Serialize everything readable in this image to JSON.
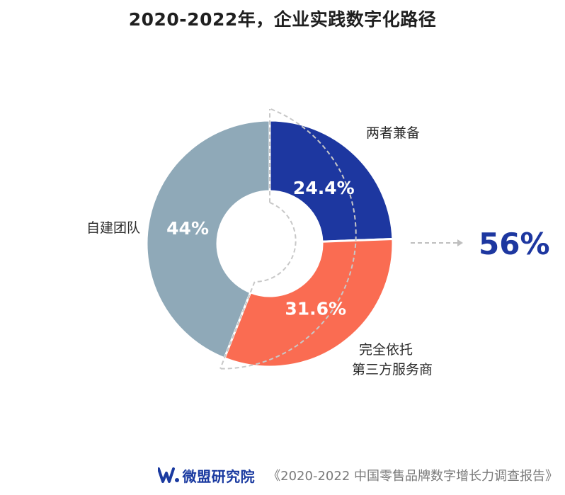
{
  "title": "2020-2022年，企业实践数字化路径",
  "chart_data": {
    "type": "donut",
    "title": "2020-2022年，企业实践数字化路径",
    "segments": [
      {
        "name": "两者兼备",
        "label": "24.4%",
        "value": 24.4,
        "color": "#1d37a0"
      },
      {
        "name": "完全依托第三方服务商",
        "label_lines": [
          "完全依托",
          "第三方服务商"
        ],
        "label": "31.6%",
        "value": 31.6,
        "color": "#fa6c52"
      },
      {
        "name": "自建团队",
        "label": "44%",
        "value": 44,
        "color": "#8fa9b8"
      }
    ],
    "callout": {
      "text": "56%",
      "value": 56,
      "color": "#1d37a0"
    }
  },
  "footer": {
    "logo": "微盟研究院",
    "source": "《2020-2022 中国零售品牌数字增长力调查报告》"
  }
}
